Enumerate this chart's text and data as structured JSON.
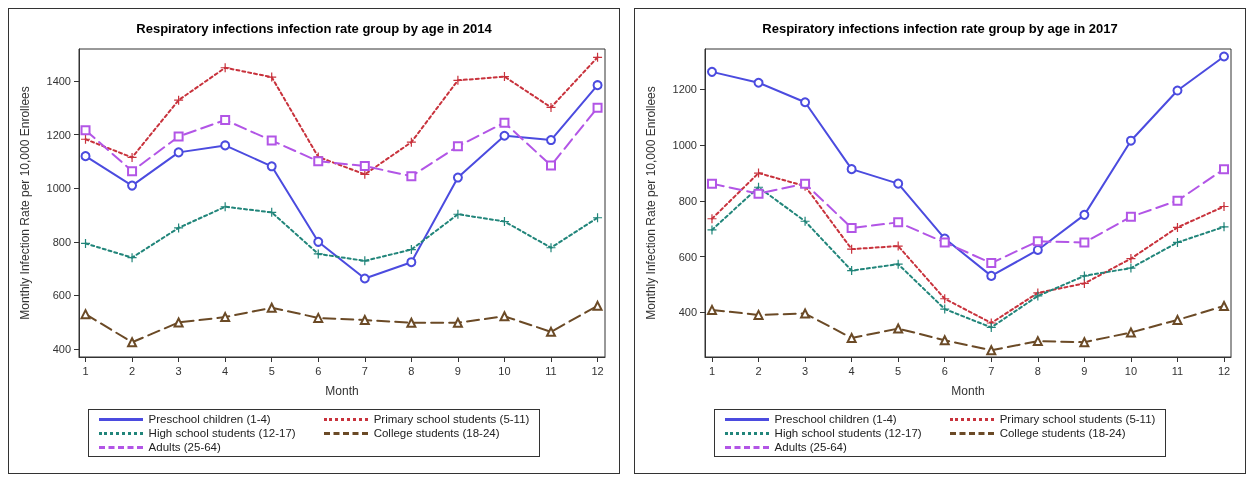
{
  "chart_data": [
    {
      "type": "line",
      "title": "Respiratory infections infection rate group by age in 2014",
      "xlabel": "Month",
      "ylabel": "Monthly Infection Rate per 10,000 Enrollees",
      "x": [
        1,
        2,
        3,
        4,
        5,
        6,
        7,
        8,
        9,
        10,
        11,
        12
      ],
      "xlim": [
        0.86,
        12.16
      ],
      "xticks": [
        1,
        2,
        3,
        4,
        5,
        6,
        7,
        8,
        9,
        10,
        11,
        12
      ],
      "ylim": [
        370,
        1520
      ],
      "yticks": [
        400,
        600,
        800,
        1000,
        1200,
        1400
      ],
      "grid": false,
      "legend": "bottom",
      "series": [
        {
          "name": "Preschool children (1-4)",
          "color": "#4b4bdf",
          "marker": "circle",
          "line_style": "solid",
          "values": [
            1120,
            1010,
            1134,
            1160,
            1082,
            800,
            663,
            724,
            1040,
            1196,
            1180,
            1385
          ]
        },
        {
          "name": "Primary school students (5-11)",
          "color": "#c8323c",
          "marker": "cross",
          "line_style": "dotted",
          "values": [
            1183,
            1115,
            1329,
            1450,
            1415,
            1117,
            1052,
            1172,
            1403,
            1417,
            1302,
            1489
          ]
        },
        {
          "name": "High school students (12-17)",
          "color": "#21857a",
          "marker": "cross",
          "line_style": "dotted",
          "values": [
            794,
            741,
            852,
            931,
            910,
            755,
            729,
            771,
            903,
            876,
            778,
            890
          ]
        },
        {
          "name": "College students (18-24)",
          "color": "#6b4a26",
          "marker": "triangle",
          "line_style": "dashed",
          "values": [
            530,
            425,
            499,
            519,
            554,
            516,
            508,
            498,
            498,
            522,
            464,
            561
          ]
        },
        {
          "name": "Adults (25-64)",
          "color": "#b255e6",
          "marker": "square",
          "line_style": "dashed",
          "values": [
            1217,
            1064,
            1193,
            1255,
            1178,
            1101,
            1083,
            1045,
            1157,
            1245,
            1085,
            1301
          ]
        }
      ]
    },
    {
      "type": "line",
      "title": "Respiratory infections infection rate group by age in 2017",
      "xlabel": "Month",
      "ylabel": "Monthly Infection Rate per 10,000 Enrollees",
      "x": [
        1,
        2,
        3,
        4,
        5,
        6,
        7,
        8,
        9,
        10,
        11,
        12
      ],
      "xlim": [
        0.85,
        12.15
      ],
      "xticks": [
        1,
        2,
        3,
        4,
        5,
        6,
        7,
        8,
        9,
        10,
        11,
        12
      ],
      "ylim": [
        240,
        1345
      ],
      "yticks": [
        400,
        600,
        800,
        1000,
        1200
      ],
      "grid": false,
      "legend": "bottom",
      "series": [
        {
          "name": "Preschool children (1-4)",
          "color": "#4b4bdf",
          "marker": "circle",
          "line_style": "solid",
          "values": [
            1263,
            1224,
            1154,
            914,
            862,
            665,
            531,
            624,
            750,
            1016,
            1196,
            1318
          ]
        },
        {
          "name": "Primary school students (5-11)",
          "color": "#c8323c",
          "marker": "cross",
          "line_style": "dotted",
          "values": [
            736,
            900,
            853,
            627,
            638,
            449,
            362,
            470,
            504,
            593,
            705,
            780
          ]
        },
        {
          "name": "High school students (12-17)",
          "color": "#21857a",
          "marker": "cross",
          "line_style": "dotted",
          "values": [
            696,
            849,
            727,
            550,
            573,
            412,
            346,
            459,
            531,
            559,
            651,
            707
          ]
        },
        {
          "name": "College students (18-24)",
          "color": "#6b4a26",
          "marker": "triangle",
          "line_style": "dashed",
          "values": [
            409,
            391,
            396,
            308,
            342,
            300,
            264,
            297,
            293,
            328,
            373,
            423
          ]
        },
        {
          "name": "Adults (25-64)",
          "color": "#b255e6",
          "marker": "square",
          "line_style": "dashed",
          "values": [
            862,
            826,
            862,
            703,
            723,
            651,
            577,
            655,
            651,
            743,
            801,
            914
          ]
        }
      ]
    }
  ]
}
